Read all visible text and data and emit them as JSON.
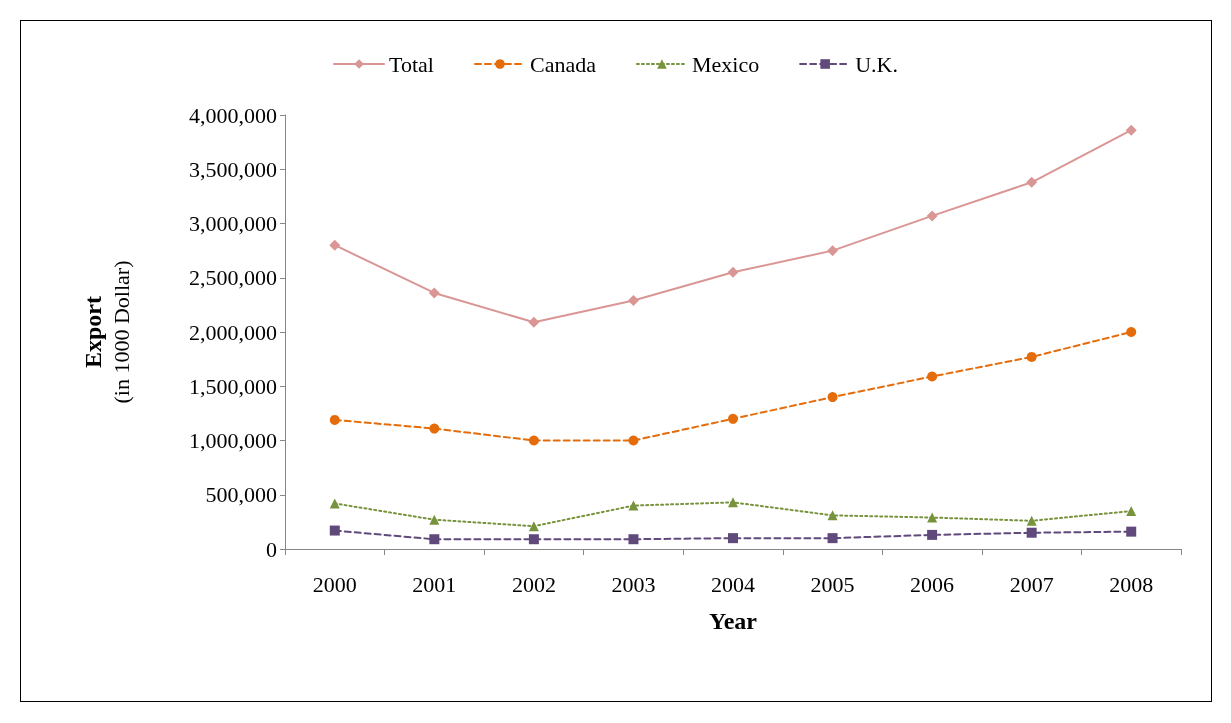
{
  "chart_data": {
    "type": "line",
    "xlabel": "Year",
    "ylabel": "Export\n(in 1000 Dollar)",
    "categories": [
      "2000",
      "2001",
      "2002",
      "2003",
      "2004",
      "2005",
      "2006",
      "2007",
      "2008"
    ],
    "ylim": [
      0,
      4000000
    ],
    "yticks": [
      0,
      {
        "value": 500000,
        "label": "500,000"
      },
      {
        "value": 1000000,
        "label": "1,000,000"
      },
      {
        "value": 1500000,
        "label": "1,500,000"
      },
      {
        "value": 2000000,
        "label": "2,000,000"
      },
      {
        "value": 2500000,
        "label": "2,500,000"
      },
      {
        "value": 3000000,
        "label": "3,000,000"
      },
      {
        "value": 3500000,
        "label": "3,500,000"
      },
      {
        "value": 4000000,
        "label": "4,000,000"
      }
    ],
    "grid": false,
    "legend": "top",
    "series": [
      {
        "name": "Total",
        "color": "#d99694",
        "marker": "diamond",
        "line_style": "solid",
        "values": [
          2800000,
          2360000,
          2090000,
          2290000,
          2550000,
          2750000,
          3070000,
          3380000,
          3860000
        ]
      },
      {
        "name": "Canada",
        "color": "#e46c0a",
        "marker": "circle",
        "line_style": "dashed",
        "values": [
          1190000,
          1110000,
          1000000,
          1000000,
          1200000,
          1400000,
          1590000,
          1770000,
          2000000
        ]
      },
      {
        "name": "Mexico",
        "color": "#77933c",
        "marker": "triangle",
        "line_style": "dotted",
        "values": [
          420000,
          270000,
          210000,
          400000,
          430000,
          310000,
          290000,
          260000,
          350000
        ]
      },
      {
        "name": "U.K.",
        "color": "#604a7b",
        "marker": "square",
        "line_style": "dashed",
        "values": [
          170000,
          90000,
          90000,
          90000,
          100000,
          100000,
          130000,
          150000,
          160000
        ]
      }
    ]
  }
}
